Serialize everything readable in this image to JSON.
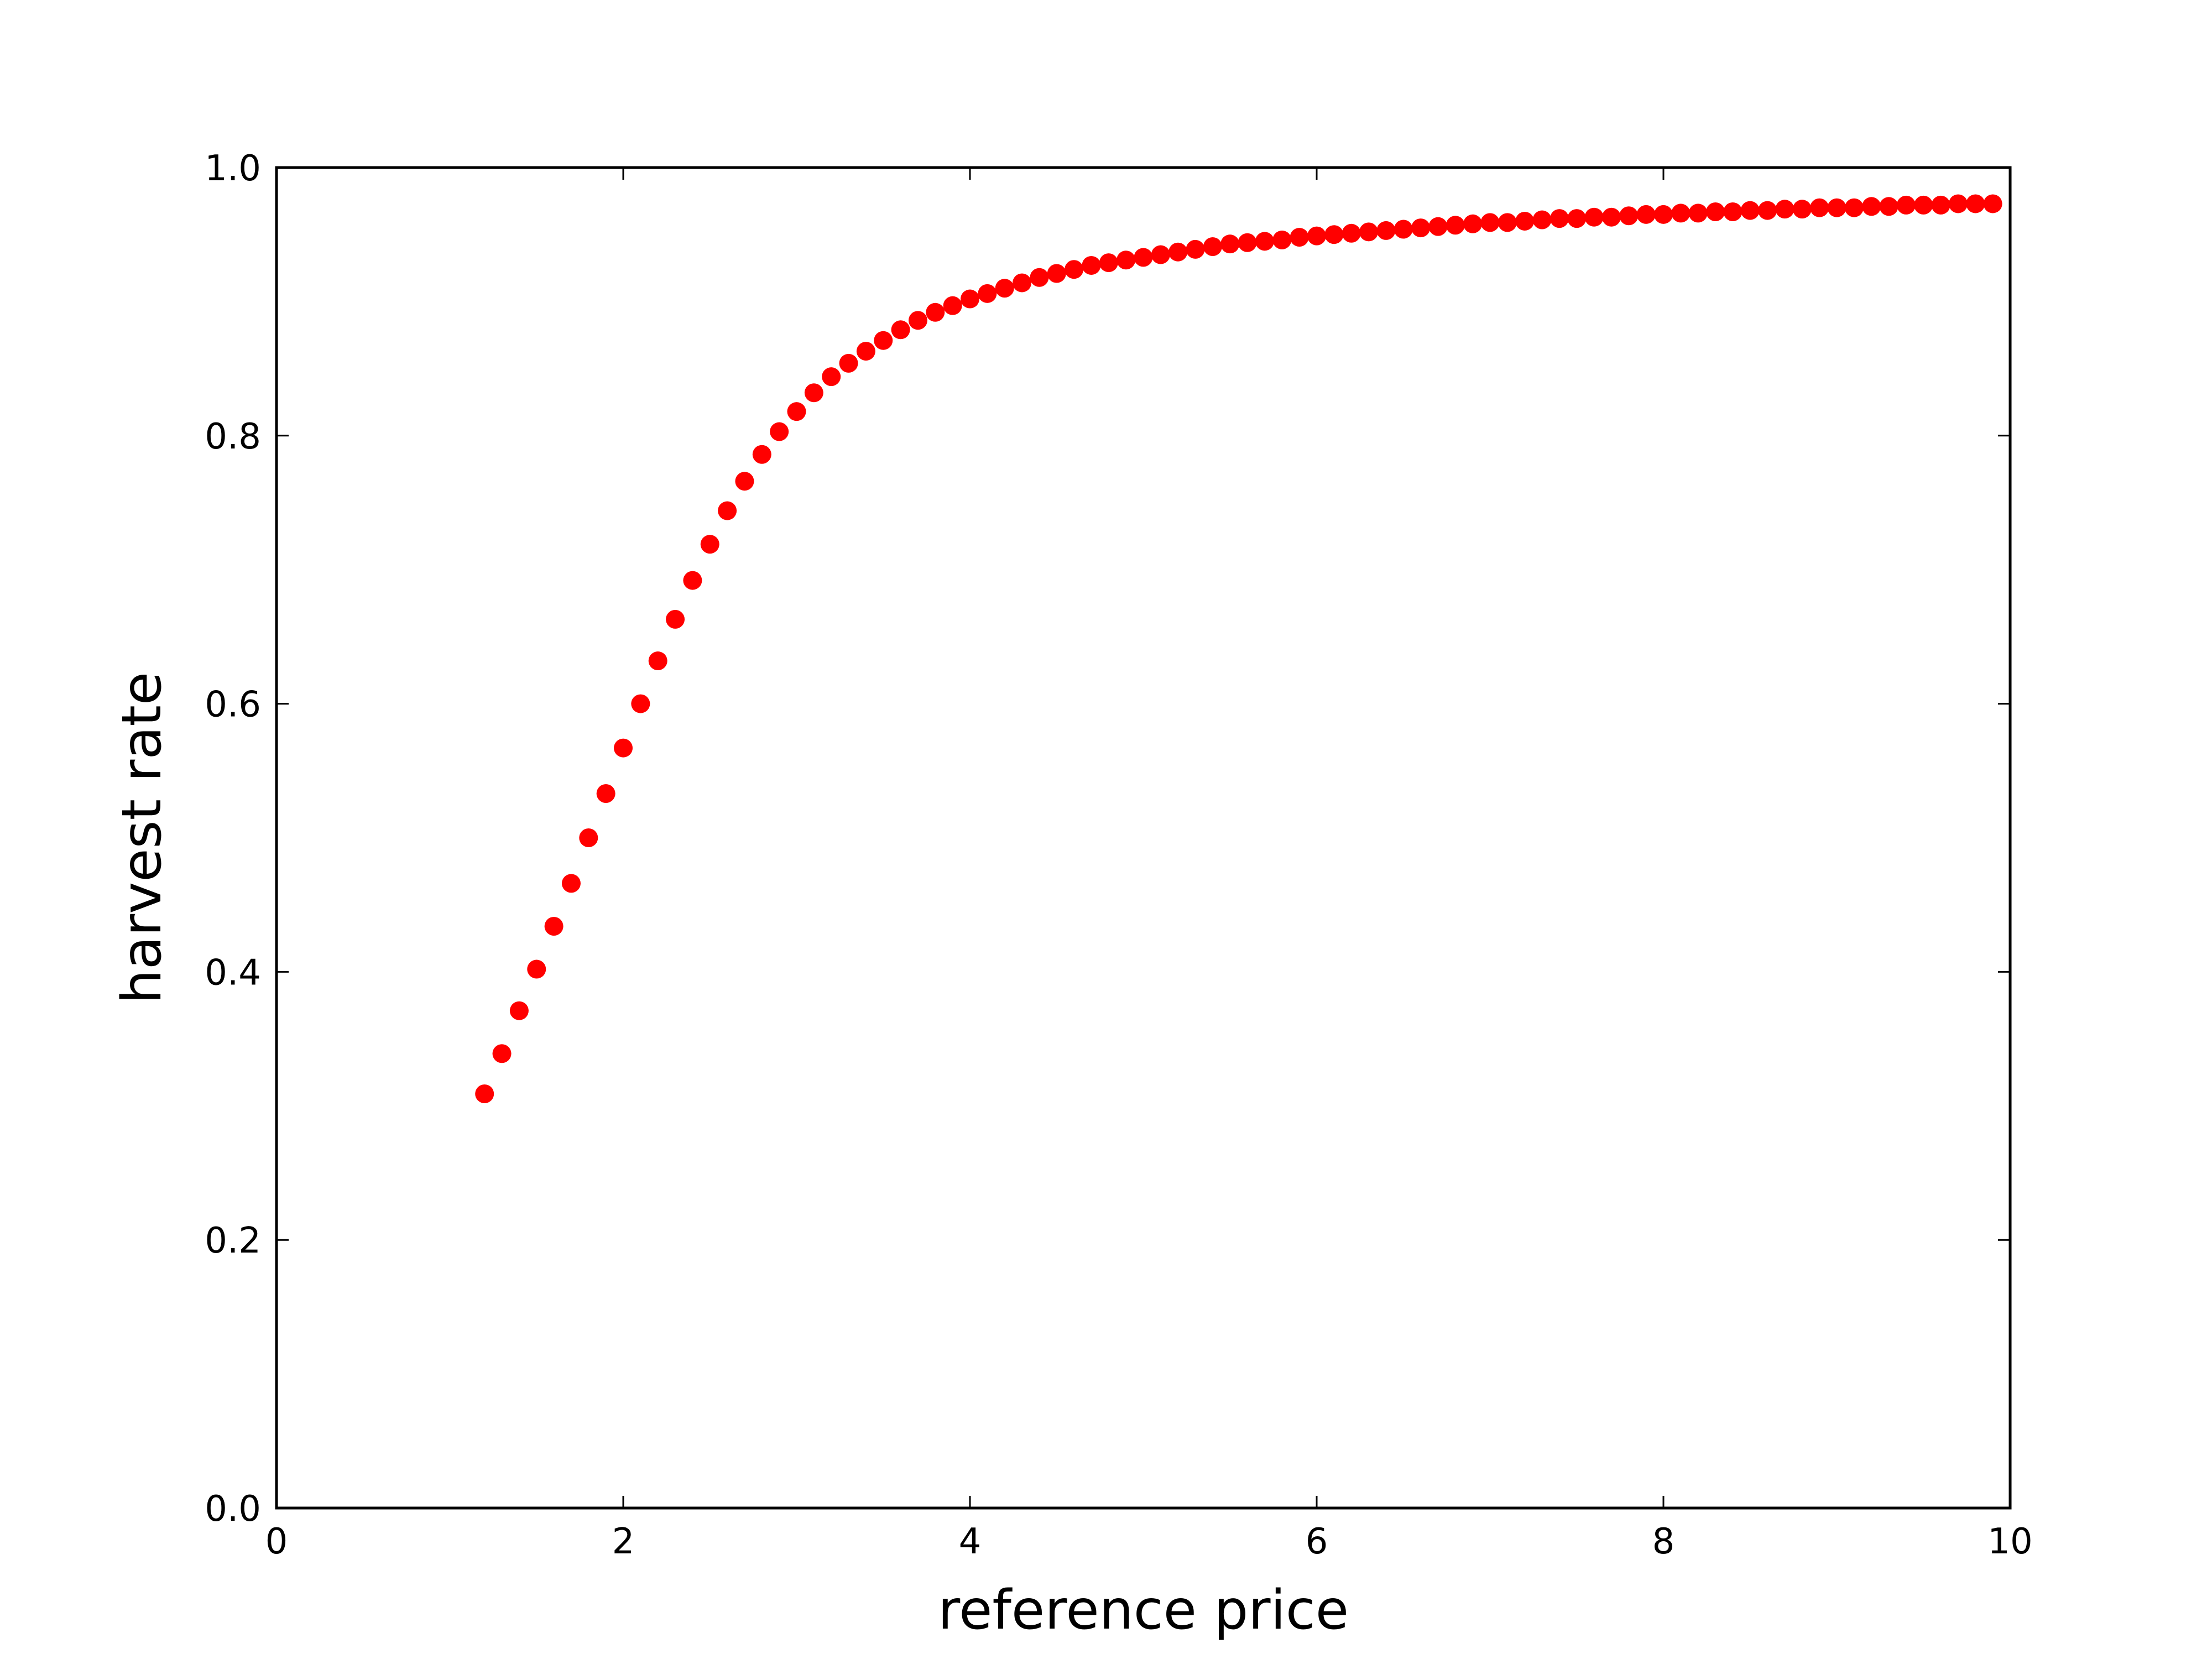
{
  "chart_data": {
    "type": "scatter",
    "title": "",
    "xlabel": "reference price",
    "ylabel": "harvest rate",
    "xlim": [
      0,
      10
    ],
    "ylim": [
      0.0,
      1.0
    ],
    "xticks": [
      "0",
      "2",
      "4",
      "6",
      "8",
      "10"
    ],
    "yticks": [
      "0.0",
      "0.2",
      "0.4",
      "0.6",
      "0.8",
      "1.0"
    ],
    "grid": false,
    "legend": "none",
    "marker_color": "#ff0000",
    "series": [
      {
        "x": [
          1.2,
          1.3,
          1.4,
          1.5,
          1.6,
          1.7,
          1.8,
          1.9,
          2.0,
          2.1,
          2.2,
          2.3,
          2.4,
          2.5,
          2.6,
          2.7,
          2.8,
          2.9,
          3.0,
          3.1,
          3.2,
          3.3,
          3.4,
          3.5,
          3.6,
          3.7,
          3.8,
          3.9,
          4.0,
          4.1,
          4.2,
          4.3,
          4.4,
          4.5,
          4.6,
          4.7,
          4.8,
          4.9,
          5.0,
          5.1,
          5.2,
          5.3,
          5.4,
          5.5,
          5.6,
          5.7,
          5.8,
          5.9,
          6.0,
          6.1,
          6.2,
          6.3,
          6.4,
          6.5,
          6.6,
          6.7,
          6.8,
          6.9,
          7.0,
          7.1,
          7.2,
          7.3,
          7.4,
          7.5,
          7.6,
          7.7,
          7.8,
          7.9,
          8.0,
          8.1,
          8.2,
          8.3,
          8.4,
          8.5,
          8.6,
          8.7,
          8.8,
          8.9,
          9.0,
          9.1,
          9.2,
          9.3,
          9.4,
          9.5,
          9.6,
          9.7,
          9.8,
          9.9
        ],
        "y": [
          0.309,
          0.339,
          0.371,
          0.402,
          0.434,
          0.466,
          0.5,
          0.533,
          0.567,
          0.6,
          0.632,
          0.663,
          0.692,
          0.719,
          0.744,
          0.766,
          0.786,
          0.803,
          0.818,
          0.832,
          0.844,
          0.854,
          0.863,
          0.871,
          0.879,
          0.886,
          0.892,
          0.897,
          0.902,
          0.906,
          0.91,
          0.914,
          0.918,
          0.921,
          0.924,
          0.927,
          0.929,
          0.931,
          0.933,
          0.935,
          0.937,
          0.939,
          0.941,
          0.943,
          0.944,
          0.945,
          0.946,
          0.948,
          0.949,
          0.95,
          0.951,
          0.952,
          0.953,
          0.954,
          0.955,
          0.956,
          0.957,
          0.958,
          0.959,
          0.959,
          0.96,
          0.961,
          0.962,
          0.962,
          0.963,
          0.963,
          0.964,
          0.965,
          0.965,
          0.966,
          0.966,
          0.967,
          0.967,
          0.968,
          0.968,
          0.969,
          0.969,
          0.97,
          0.97,
          0.97,
          0.971,
          0.971,
          0.972,
          0.972,
          0.972,
          0.973,
          0.973,
          0.973
        ]
      }
    ]
  }
}
